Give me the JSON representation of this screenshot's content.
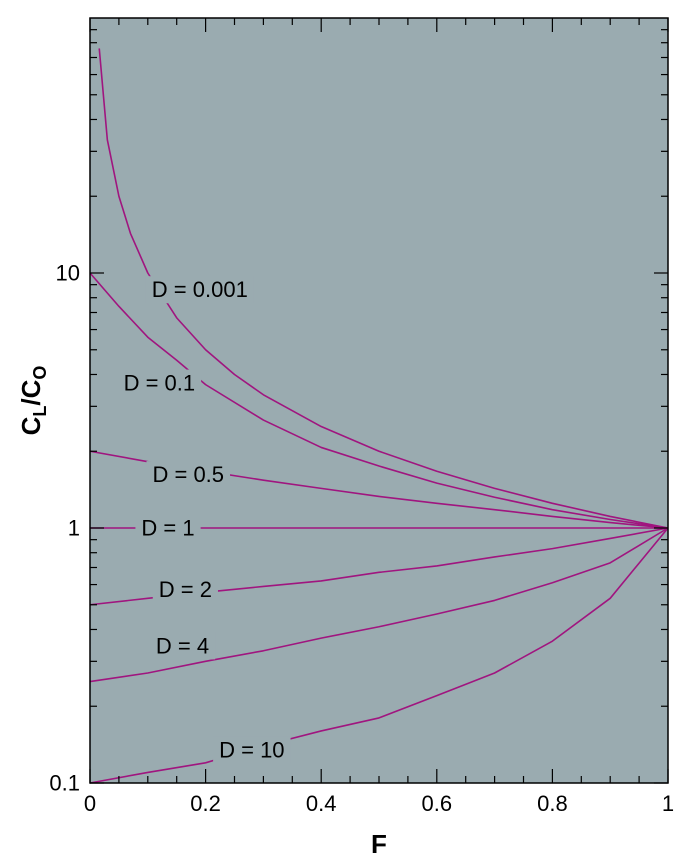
{
  "chart_data": {
    "type": "line",
    "title": "",
    "xlabel": "F",
    "ylabel": {
      "main": "C",
      "sub1": "L",
      "sep": "/C",
      "sub2": "O"
    },
    "xlim": [
      0,
      1
    ],
    "ylim": [
      0.1,
      100
    ],
    "yscale": "log",
    "x_ticks": [
      0,
      0.2,
      0.4,
      0.6,
      0.8,
      1
    ],
    "x_tick_labels": [
      "0",
      "0.2",
      "0.4",
      "0.6",
      "0.8",
      "1"
    ],
    "y_ticks": [
      0.1,
      1,
      10
    ],
    "y_tick_labels": [
      "0.1",
      "1",
      "10"
    ],
    "grid": false,
    "colors": {
      "plot_bg": "#9aabb0",
      "line": "#a0157f",
      "frame": "#000000"
    },
    "series": [
      {
        "name": "D = 0.001",
        "x": [
          0.016,
          0.03,
          0.05,
          0.07,
          0.1,
          0.15,
          0.2,
          0.25,
          0.3,
          0.4,
          0.5,
          0.6,
          0.7,
          0.8,
          0.9,
          1.0
        ],
        "y": [
          76.0,
          33.3,
          20.0,
          14.3,
          10.0,
          6.67,
          5.0,
          4.0,
          3.33,
          2.5,
          2.0,
          1.67,
          1.43,
          1.25,
          1.11,
          1.0
        ]
      },
      {
        "name": "D = 0.1",
        "x": [
          0,
          0.05,
          0.1,
          0.15,
          0.2,
          0.3,
          0.4,
          0.5,
          0.6,
          0.7,
          0.8,
          0.9,
          1.0
        ],
        "y": [
          10.0,
          7.4,
          5.6,
          4.55,
          3.65,
          2.65,
          2.07,
          1.75,
          1.5,
          1.32,
          1.18,
          1.08,
          1.0
        ]
      },
      {
        "name": "D = 0.5",
        "x": [
          0,
          0.1,
          0.2,
          0.3,
          0.4,
          0.5,
          0.6,
          0.7,
          0.8,
          0.9,
          1.0
        ],
        "y": [
          2.0,
          1.82,
          1.67,
          1.54,
          1.43,
          1.33,
          1.25,
          1.18,
          1.11,
          1.05,
          1.0
        ]
      },
      {
        "name": "D = 1",
        "x": [
          0,
          1.0
        ],
        "y": [
          1.0,
          1.0
        ]
      },
      {
        "name": "D = 2",
        "x": [
          0,
          0.1,
          0.2,
          0.3,
          0.4,
          0.5,
          0.6,
          0.7,
          0.8,
          0.9,
          1.0
        ],
        "y": [
          0.5,
          0.53,
          0.56,
          0.59,
          0.62,
          0.67,
          0.71,
          0.77,
          0.83,
          0.91,
          1.0
        ]
      },
      {
        "name": "D = 4",
        "x": [
          0,
          0.1,
          0.2,
          0.3,
          0.4,
          0.5,
          0.6,
          0.7,
          0.8,
          0.9,
          1.0
        ],
        "y": [
          0.25,
          0.27,
          0.3,
          0.33,
          0.37,
          0.41,
          0.46,
          0.52,
          0.61,
          0.73,
          1.0
        ]
      },
      {
        "name": "D = 10",
        "x": [
          0,
          0.1,
          0.2,
          0.3,
          0.4,
          0.5,
          0.6,
          0.7,
          0.8,
          0.9,
          1.0
        ],
        "y": [
          0.1,
          0.11,
          0.12,
          0.14,
          0.16,
          0.18,
          0.22,
          0.27,
          0.36,
          0.53,
          1.0
        ]
      }
    ],
    "curve_labels": [
      {
        "text": "D = 0.001",
        "x": 0.19,
        "y": 8.6
      },
      {
        "text": "D = 0.1",
        "x": 0.12,
        "y": 3.7
      },
      {
        "text": "D = 0.5",
        "x": 0.17,
        "y": 1.62
      },
      {
        "text": "D = 1",
        "x": 0.135,
        "y": 1.0
      },
      {
        "text": "D = 2",
        "x": 0.165,
        "y": 0.575
      },
      {
        "text": "D = 4",
        "x": 0.16,
        "y": 0.345
      },
      {
        "text": "D = 10",
        "x": 0.28,
        "y": 0.135
      }
    ]
  }
}
